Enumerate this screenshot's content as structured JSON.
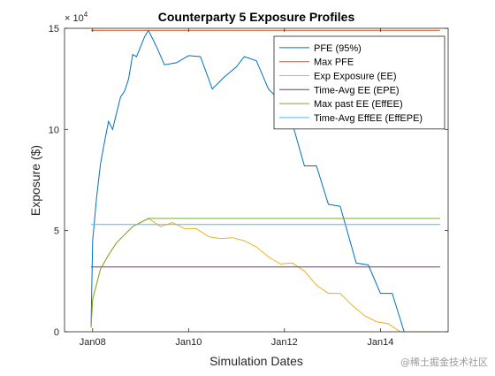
{
  "watermark": "@稀土掘金技术社区",
  "chart_data": {
    "type": "line",
    "title": "Counterparty 5 Exposure Profiles",
    "xlabel": "Simulation Dates",
    "ylabel": "Exposure ($)",
    "y_multiplier_label": "× 10",
    "y_multiplier_exponent": "4",
    "x_range": [
      "2007-06-01",
      "2015-06-01"
    ],
    "ylim": [
      0,
      150000
    ],
    "x_ticks": [
      {
        "label": "Jan08",
        "date": "2008-01-01"
      },
      {
        "label": "Jan10",
        "date": "2010-01-01"
      },
      {
        "label": "Jan12",
        "date": "2012-01-01"
      },
      {
        "label": "Jan14",
        "date": "2014-01-01"
      }
    ],
    "y_ticks": [
      {
        "label": "0",
        "value": 0
      },
      {
        "label": "5",
        "value": 50000
      },
      {
        "label": "10",
        "value": 100000
      },
      {
        "label": "15",
        "value": 150000
      }
    ],
    "grid": false,
    "legend_position": "top-right",
    "series": [
      {
        "name": "PFE (95%)",
        "color": "#0072BD",
        "points": [
          [
            "2007-12-20",
            2000
          ],
          [
            "2008-01-01",
            45000
          ],
          [
            "2008-02-01",
            67000
          ],
          [
            "2008-03-01",
            83000
          ],
          [
            "2008-04-01",
            94000
          ],
          [
            "2008-05-01",
            104000
          ],
          [
            "2008-06-01",
            100000
          ],
          [
            "2008-07-01",
            108000
          ],
          [
            "2008-08-01",
            116000
          ],
          [
            "2008-09-01",
            119000
          ],
          [
            "2008-10-01",
            125000
          ],
          [
            "2008-11-01",
            137000
          ],
          [
            "2008-12-01",
            136000
          ],
          [
            "2009-01-01",
            141000
          ],
          [
            "2009-02-01",
            146000
          ],
          [
            "2009-03-01",
            149000
          ],
          [
            "2009-05-01",
            141000
          ],
          [
            "2009-07-01",
            132000
          ],
          [
            "2009-10-01",
            133000
          ],
          [
            "2010-01-01",
            136500
          ],
          [
            "2010-04-01",
            136000
          ],
          [
            "2010-07-01",
            120000
          ],
          [
            "2010-10-01",
            126000
          ],
          [
            "2011-01-01",
            131000
          ],
          [
            "2011-03-01",
            136000
          ],
          [
            "2011-06-01",
            134000
          ],
          [
            "2011-09-01",
            120000
          ],
          [
            "2011-12-01",
            114000
          ],
          [
            "2012-03-01",
            103000
          ],
          [
            "2012-06-01",
            82000
          ],
          [
            "2012-09-01",
            82000
          ],
          [
            "2012-12-01",
            63000
          ],
          [
            "2013-03-01",
            62000
          ],
          [
            "2013-07-01",
            34000
          ],
          [
            "2013-10-01",
            33000
          ],
          [
            "2014-01-01",
            19000
          ],
          [
            "2014-04-01",
            19000
          ],
          [
            "2014-07-01",
            0
          ],
          [
            "2015-04-01",
            0
          ]
        ]
      },
      {
        "name": "Max PFE",
        "color": "#D95319",
        "points": [
          [
            "2007-12-20",
            149000
          ],
          [
            "2015-04-01",
            149000
          ]
        ]
      },
      {
        "name": "Exp Exposure (EE)",
        "color": "#EDB120",
        "points": [
          [
            "2007-12-20",
            2000
          ],
          [
            "2008-01-01",
            16000
          ],
          [
            "2008-03-01",
            31000
          ],
          [
            "2008-05-01",
            38000
          ],
          [
            "2008-07-01",
            44000
          ],
          [
            "2008-09-01",
            48000
          ],
          [
            "2008-11-01",
            52000
          ],
          [
            "2009-01-01",
            54000
          ],
          [
            "2009-03-01",
            56000
          ],
          [
            "2009-06-01",
            52000
          ],
          [
            "2009-09-01",
            54000
          ],
          [
            "2009-12-01",
            51000
          ],
          [
            "2010-03-01",
            51000
          ],
          [
            "2010-06-01",
            47000
          ],
          [
            "2010-09-01",
            46000
          ],
          [
            "2010-12-01",
            46500
          ],
          [
            "2011-03-01",
            45000
          ],
          [
            "2011-06-01",
            42000
          ],
          [
            "2011-09-01",
            37000
          ],
          [
            "2011-12-01",
            33500
          ],
          [
            "2012-03-01",
            34000
          ],
          [
            "2012-06-01",
            30000
          ],
          [
            "2012-09-01",
            23000
          ],
          [
            "2012-12-01",
            19000
          ],
          [
            "2013-03-01",
            19000
          ],
          [
            "2013-06-01",
            13000
          ],
          [
            "2013-09-01",
            8000
          ],
          [
            "2013-12-01",
            5000
          ],
          [
            "2014-03-01",
            4000
          ],
          [
            "2014-06-01",
            0
          ],
          [
            "2015-04-01",
            0
          ]
        ]
      },
      {
        "name": "Time-Avg EE (EPE)",
        "color": "#7E2F8E",
        "points": [
          [
            "2007-12-20",
            32000
          ],
          [
            "2015-04-01",
            32000
          ]
        ]
      },
      {
        "name": "Max past EE (EffEE)",
        "color": "#77AC30",
        "points": [
          [
            "2007-12-20",
            2000
          ],
          [
            "2008-01-01",
            16000
          ],
          [
            "2008-03-01",
            31000
          ],
          [
            "2008-05-01",
            38000
          ],
          [
            "2008-07-01",
            44000
          ],
          [
            "2008-09-01",
            48000
          ],
          [
            "2008-11-01",
            52000
          ],
          [
            "2009-01-01",
            54000
          ],
          [
            "2009-03-01",
            56000
          ],
          [
            "2015-04-01",
            56000
          ]
        ]
      },
      {
        "name": "Time-Avg EffEE (EffEPE)",
        "color": "#4DBEEE",
        "points": [
          [
            "2007-12-20",
            53000
          ],
          [
            "2015-04-01",
            53000
          ]
        ]
      }
    ]
  }
}
